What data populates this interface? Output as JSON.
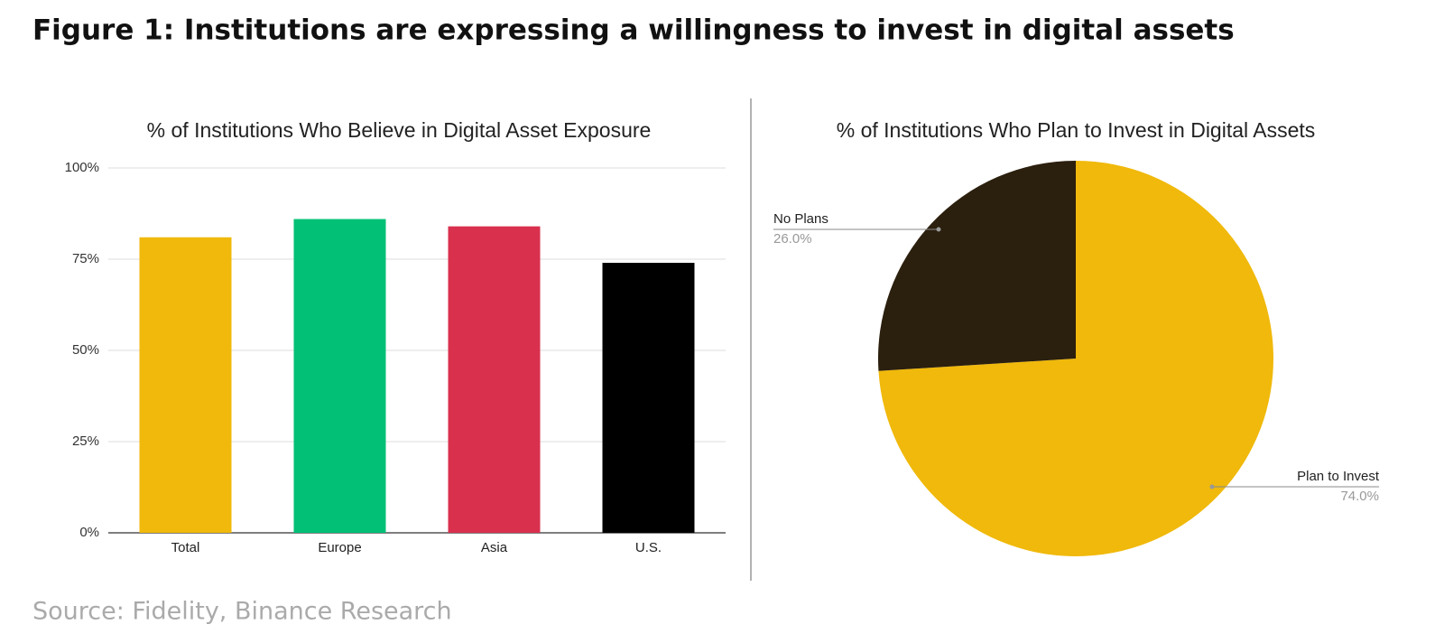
{
  "title": "Figure 1: Institutions are expressing a willingness to invest in digital assets",
  "source": "Source: Fidelity, Binance Research",
  "chart_data": [
    {
      "type": "bar",
      "title": "% of Institutions Who Believe in Digital Asset Exposure",
      "categories": [
        "Total",
        "Europe",
        "Asia",
        "U.S."
      ],
      "values": [
        81,
        86,
        84,
        74
      ],
      "colors": [
        "#f0b90b",
        "#02c076",
        "#d9304e",
        "#000000"
      ],
      "ylim": [
        0,
        100
      ],
      "yticks": [
        {
          "value": 0,
          "label": "0%"
        },
        {
          "value": 25,
          "label": "25%"
        },
        {
          "value": 50,
          "label": "50%"
        },
        {
          "value": 75,
          "label": "75%"
        },
        {
          "value": 100,
          "label": "100%"
        }
      ],
      "grid": true
    },
    {
      "type": "pie",
      "title": "% of Institutions Who Plan to Invest in Digital Assets",
      "categories": [
        "Plan to Invest",
        "No Plans"
      ],
      "values": [
        74,
        26
      ],
      "value_labels": [
        "74.0%",
        "26.0%"
      ],
      "colors": [
        "#f0b90b",
        "#2b1f0e"
      ]
    }
  ]
}
